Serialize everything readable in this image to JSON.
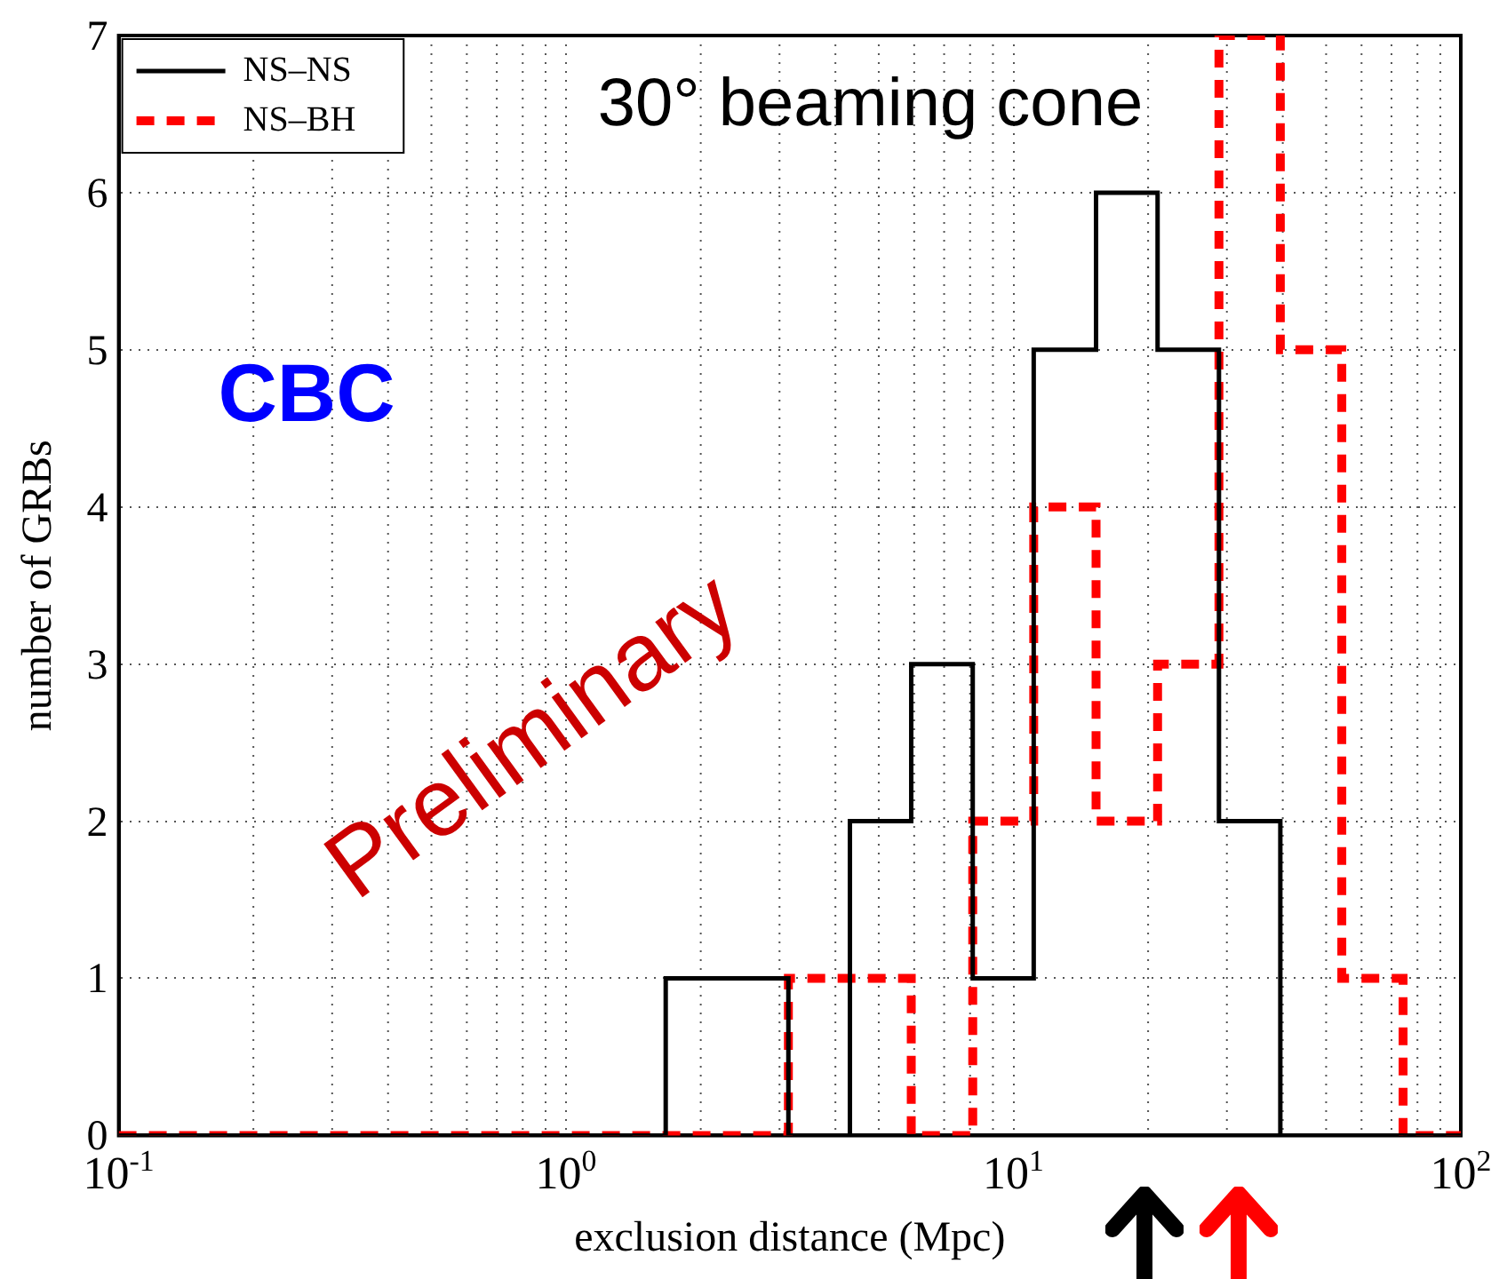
{
  "chart_data": {
    "type": "histogram",
    "xlabel": "exclusion distance (Mpc)",
    "ylabel": "number of GRBs",
    "bins": [
      0.1,
      1.67,
      2.29,
      3.14,
      4.31,
      5.91,
      8.11,
      11.1,
      15.3,
      21.0,
      28.8,
      39.5,
      54.2,
      74.3,
      100
    ],
    "series": [
      {
        "name": "NS–NS",
        "color": "#000000",
        "line_style": "solid",
        "values": [
          0,
          1,
          1,
          0,
          2,
          3,
          1,
          5,
          6,
          5,
          2,
          0,
          0,
          0
        ]
      },
      {
        "name": "NS–BH",
        "color": "#ff0000",
        "line_style": "dashed",
        "values": [
          0,
          0,
          0,
          1,
          1,
          0,
          2,
          4,
          2,
          3,
          7,
          5,
          1,
          0
        ]
      }
    ],
    "log": "x",
    "xlim": [
      0.1,
      100
    ],
    "xticks": [
      {
        "value": 0.1,
        "label": "10$^{-1}$"
      },
      {
        "value": 1,
        "label": "10$^{0}$"
      },
      {
        "value": 10,
        "label": "10$^{1}$"
      },
      {
        "value": 100,
        "label": "10$^{2}$"
      }
    ],
    "ylim": [
      0,
      7
    ],
    "yticks": [
      0,
      1,
      2,
      3,
      4,
      5,
      6,
      7
    ],
    "grid": true,
    "legend": "top left",
    "annotations": [
      "30° beaming cone",
      "CBC",
      "Preliminary"
    ]
  }
}
